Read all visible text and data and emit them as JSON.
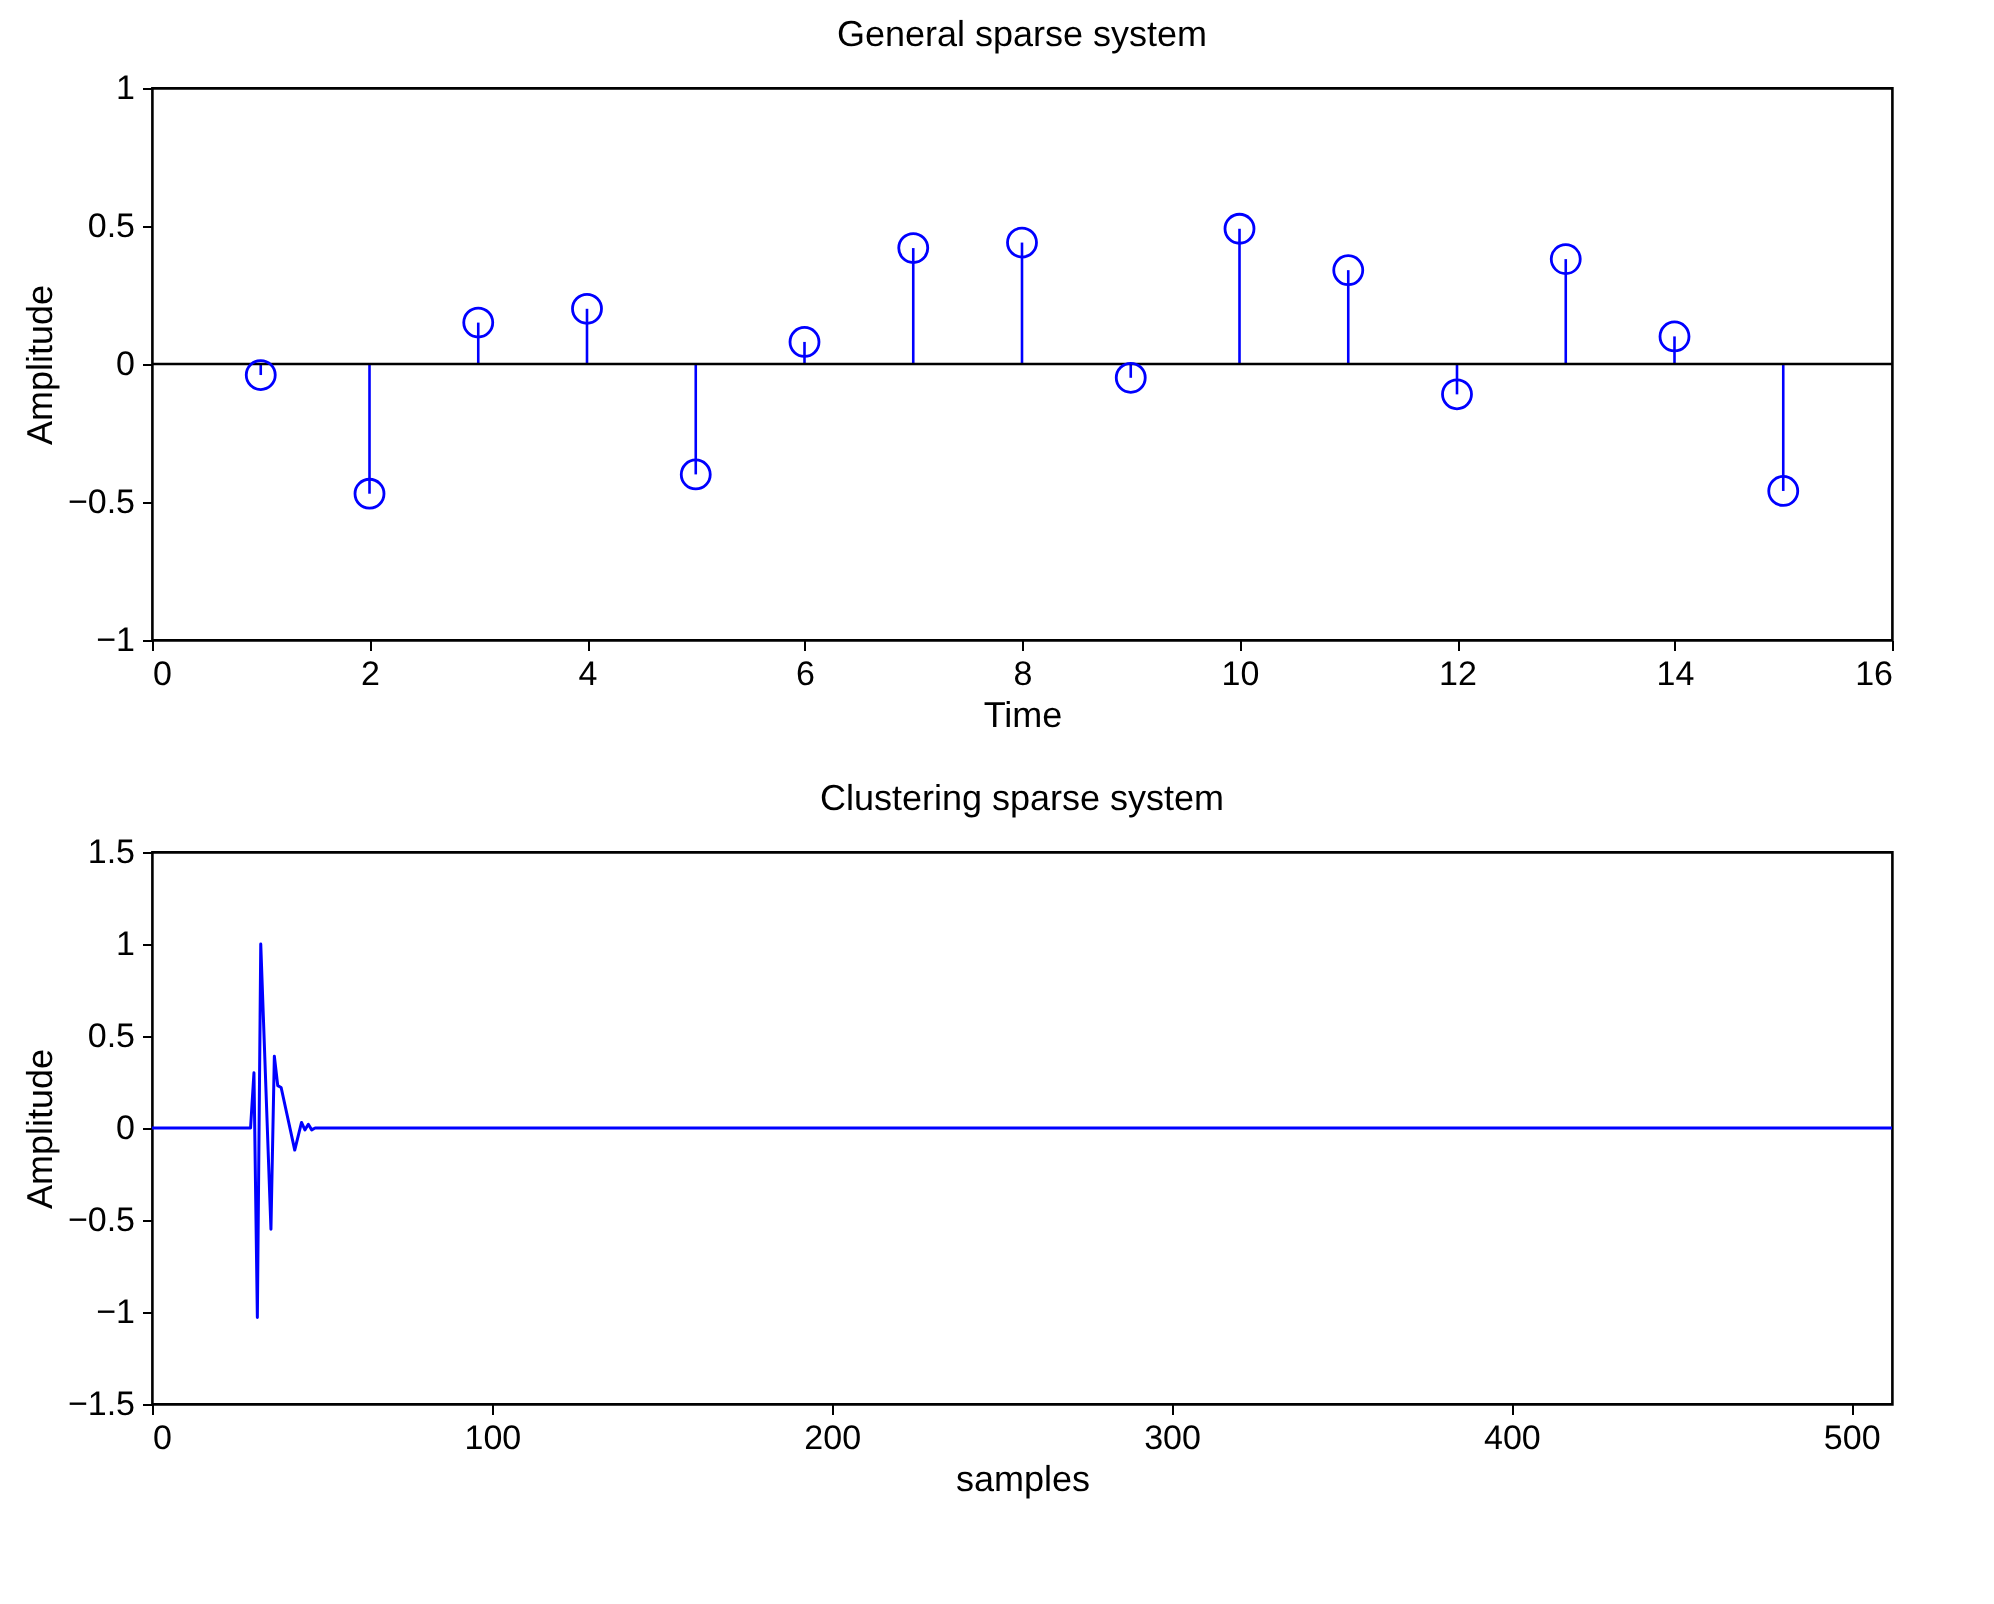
{
  "chart_data": [
    {
      "type": "lollipop",
      "title": "General sparse system",
      "xlabel": "Time",
      "ylabel": "Amplitude",
      "x": [
        1,
        2,
        3,
        4,
        5,
        6,
        7,
        8,
        9,
        10,
        11,
        12,
        13,
        14,
        15
      ],
      "values": [
        -0.04,
        -0.47,
        0.15,
        0.2,
        -0.4,
        0.08,
        0.42,
        0.44,
        -0.05,
        0.49,
        0.34,
        -0.11,
        0.38,
        0.1,
        -0.46
      ],
      "color": "#0000ff",
      "marker": "circle",
      "xlim": [
        0,
        16
      ],
      "xticks": [
        0,
        2,
        4,
        6,
        8,
        10,
        12,
        14,
        16
      ],
      "ylim": [
        -1,
        1
      ],
      "yticks": [
        -1,
        -0.5,
        0,
        0.5,
        1
      ],
      "ref_lines": [
        {
          "axis": "y",
          "value": 0,
          "color": "#000000"
        }
      ]
    },
    {
      "type": "line",
      "title": "Clustering sparse system",
      "xlabel": "samples",
      "ylabel": "Amplitude",
      "x": [
        0,
        29,
        30,
        31,
        32,
        35,
        36,
        37,
        38,
        42,
        44,
        45,
        46,
        47,
        48,
        49,
        512
      ],
      "values": [
        0,
        0,
        0.3,
        -1.03,
        1.0,
        -0.55,
        0.39,
        0.23,
        0.22,
        -0.12,
        0.03,
        -0.01,
        0.02,
        -0.01,
        0,
        0,
        0
      ],
      "color": "#0000ff",
      "marker": "none",
      "xlim": [
        0,
        512
      ],
      "xticks": [
        0,
        100,
        200,
        300,
        400,
        500
      ],
      "ylim": [
        -1.5,
        1.5
      ],
      "yticks": [
        -1.5,
        -1,
        -0.5,
        0,
        0.5,
        1,
        1.5
      ]
    }
  ]
}
